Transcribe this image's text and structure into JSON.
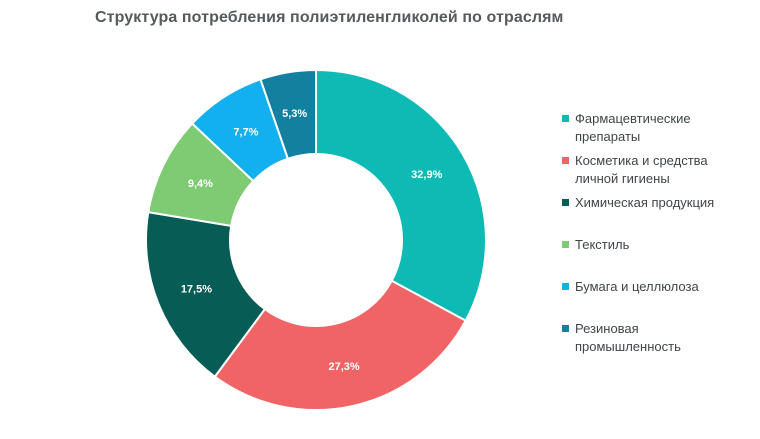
{
  "chart_data": {
    "type": "pie",
    "variant": "donut",
    "title": "Структура потребления полиэтиленгликолей по отраслям",
    "legend_position": "right",
    "slices": [
      {
        "label": "Фармацевтические препараты",
        "value": 32.9,
        "display": "32,9%",
        "color": "#0ebab4"
      },
      {
        "label": "Косметика и средства личной гигиены",
        "value": 27.3,
        "display": "27,3%",
        "color": "#f16466"
      },
      {
        "label": "Химическая продукция",
        "value": 17.5,
        "display": "17,5%",
        "color": "#075c56"
      },
      {
        "label": "Текстиль",
        "value": 9.4,
        "display": "9,4%",
        "color": "#7ecb74"
      },
      {
        "label": "Бумага и целлюлоза",
        "value": 7.7,
        "display": "7,7%",
        "color": "#12b0ee"
      },
      {
        "label": "Резиновая промышленность",
        "value": 5.3,
        "display": "5,3%",
        "color": "#14809f"
      }
    ]
  }
}
